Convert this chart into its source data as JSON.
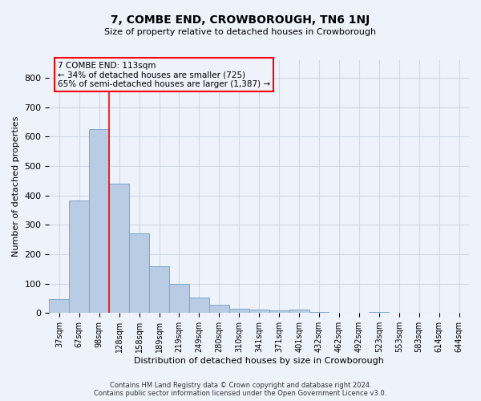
{
  "title": "7, COMBE END, CROWBOROUGH, TN6 1NJ",
  "subtitle": "Size of property relative to detached houses in Crowborough",
  "xlabel": "Distribution of detached houses by size in Crowborough",
  "ylabel": "Number of detached properties",
  "bar_labels": [
    "37sqm",
    "67sqm",
    "98sqm",
    "128sqm",
    "158sqm",
    "189sqm",
    "219sqm",
    "249sqm",
    "280sqm",
    "310sqm",
    "341sqm",
    "371sqm",
    "401sqm",
    "432sqm",
    "462sqm",
    "492sqm",
    "523sqm",
    "553sqm",
    "583sqm",
    "614sqm",
    "644sqm"
  ],
  "bar_values": [
    48,
    383,
    625,
    440,
    270,
    160,
    98,
    53,
    28,
    15,
    13,
    10,
    13,
    5,
    0,
    0,
    5,
    0,
    0,
    0,
    0
  ],
  "bar_color": "#b8cce4",
  "bar_edge_color": "#7ba7cc",
  "grid_color": "#d0d8e8",
  "background_color": "#eef2fb",
  "annotation_line1": "7 COMBE END: 113sqm",
  "annotation_line2": "← 34% of detached houses are smaller (725)",
  "annotation_line3": "65% of semi-detached houses are larger (1,387) →",
  "red_line_x": 2.5,
  "ylim": [
    0,
    860
  ],
  "yticks": [
    0,
    100,
    200,
    300,
    400,
    500,
    600,
    700,
    800
  ],
  "footer_line1": "Contains HM Land Registry data © Crown copyright and database right 2024.",
  "footer_line2": "Contains public sector information licensed under the Open Government Licence v3.0."
}
